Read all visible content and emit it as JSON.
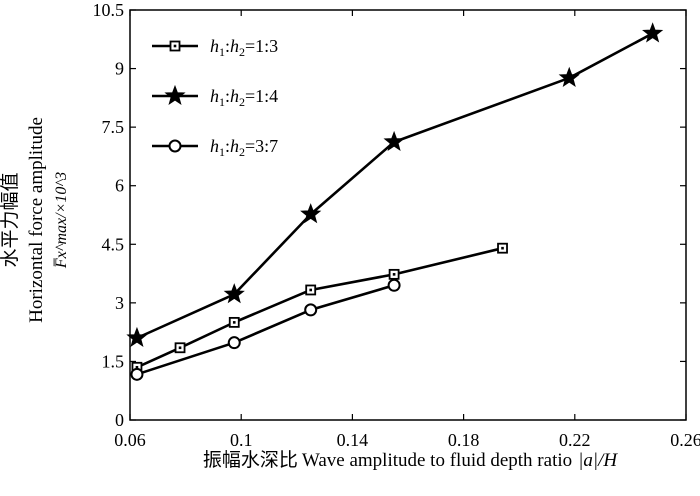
{
  "chart_data": {
    "type": "line",
    "title": "",
    "xlabel_cn": "振幅水深比",
    "xlabel_en": "Wave amplitude to fluid depth ratio",
    "xlabel_sym": "|a|/H",
    "ylabel_cn": "水平力幅值",
    "ylabel_en": "Horizontal force amplitude",
    "ylabel_sym": "F̅x^max/×10^3",
    "xlim": [
      0.06,
      0.26
    ],
    "ylim": [
      0,
      10.5
    ],
    "xticks": [
      "0.06",
      "0.1",
      "0.14",
      "0.18",
      "0.22",
      "0.26"
    ],
    "yticks": [
      "0",
      "1.5",
      "3",
      "4.5",
      "6",
      "7.5",
      "9",
      "10.5"
    ],
    "legend_position": "top-left",
    "grid": false,
    "series": [
      {
        "name": "h1:h2=1:3",
        "label": {
          "a": "h",
          "a_sub": "1",
          "b": "h",
          "b_sub": "2",
          "ratio": "=1:3"
        },
        "marker": "square",
        "x": [
          0.0625,
          0.078,
          0.0975,
          0.125,
          0.155,
          0.194
        ],
        "y": [
          1.35,
          1.85,
          2.5,
          3.33,
          3.73,
          4.4
        ]
      },
      {
        "name": "h1:h2=1:4",
        "label": {
          "a": "h",
          "a_sub": "1",
          "b": "h",
          "b_sub": "2",
          "ratio": "=1:4"
        },
        "marker": "star",
        "x": [
          0.0625,
          0.0975,
          0.125,
          0.155,
          0.218,
          0.248
        ],
        "y": [
          2.1,
          3.22,
          5.27,
          7.12,
          8.76,
          9.9
        ]
      },
      {
        "name": "h1:h2=3:7",
        "label": {
          "a": "h",
          "a_sub": "1",
          "b": "h",
          "b_sub": "2",
          "ratio": "=3:7"
        },
        "marker": "circle",
        "x": [
          0.0625,
          0.0975,
          0.125,
          0.155
        ],
        "y": [
          1.17,
          1.98,
          2.82,
          3.45
        ]
      }
    ]
  }
}
